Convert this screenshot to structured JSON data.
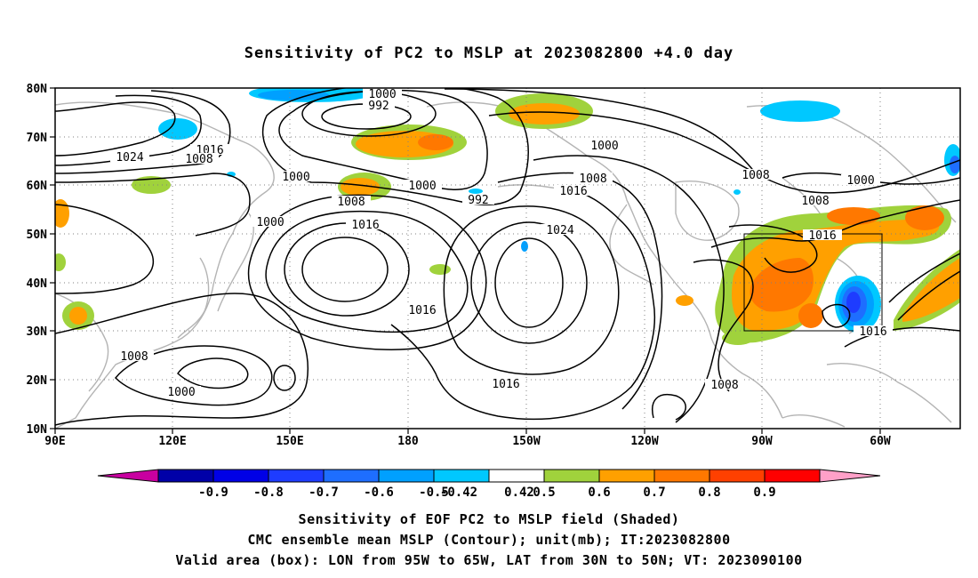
{
  "title": "Sensitivity of PC2 to MSLP at 2023082800 +4.0 day",
  "axes": {
    "lat_labels": [
      "80N",
      "70N",
      "60N",
      "50N",
      "40N",
      "30N",
      "20N",
      "10N"
    ],
    "lon_labels": [
      "90E",
      "120E",
      "150E",
      "180",
      "150W",
      "120W",
      "90W",
      "60W"
    ]
  },
  "contour_labels": [
    {
      "text": "1000"
    },
    {
      "text": "992"
    },
    {
      "text": "1024"
    },
    {
      "text": "1016"
    },
    {
      "text": "1008"
    },
    {
      "text": "1000"
    },
    {
      "text": "1008"
    },
    {
      "text": "1000"
    },
    {
      "text": "992"
    },
    {
      "text": "1016"
    },
    {
      "text": "1008"
    },
    {
      "text": "1000"
    },
    {
      "text": "1016"
    },
    {
      "text": "1024"
    },
    {
      "text": "1016"
    },
    {
      "text": "1008"
    },
    {
      "text": "1000"
    },
    {
      "text": "1000"
    },
    {
      "text": "1008"
    },
    {
      "text": "1000"
    },
    {
      "text": "1016"
    },
    {
      "text": "1016"
    },
    {
      "text": "1008"
    },
    {
      "text": "1016"
    },
    {
      "text": "1008"
    }
  ],
  "colorbar": {
    "labels": [
      "-0.9",
      "-0.8",
      "-0.7",
      "-0.6",
      "-0.5",
      "-0.42",
      "0.42",
      "0.5",
      "0.6",
      "0.7",
      "0.8",
      "0.9"
    ],
    "colors": [
      "#0000a8",
      "#0000e6",
      "#1e3cff",
      "#1e6eff",
      "#00a0ff",
      "#00c8ff",
      "#ffffff",
      "#a0d23c",
      "#ffa000",
      "#ff7800",
      "#ff4000",
      "#ff0000"
    ],
    "left_end_color": "#c800a0",
    "right_end_color": "#ffa0c8"
  },
  "valid_box": {
    "lon_w": -95,
    "lon_e": -65,
    "lat_s": 30,
    "lat_n": 50
  },
  "captions": [
    "Sensitivity of EOF PC2 to MSLP field (Shaded)",
    "CMC ensemble mean MSLP (Contour); unit(mb); IT:2023082800",
    "Valid area (box): LON from 95W to 65W, LAT from 30N to 50N; VT: 2023090100"
  ]
}
